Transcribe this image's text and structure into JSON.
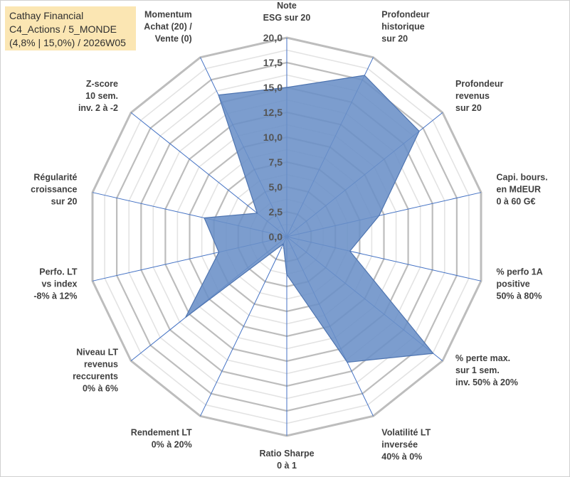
{
  "chart_data": {
    "type": "radar",
    "title": [
      "Cathay Financial",
      "C4_Actions / 5_MONDE",
      "(4,8% | 15,0%) / 2026W05"
    ],
    "rlim": [
      0,
      20
    ],
    "ticks": [
      "0,0",
      "2,5",
      "5,0",
      "7,5",
      "10,0",
      "12,5",
      "15,0",
      "17,5",
      "20,0"
    ],
    "tick_values": [
      0,
      2.5,
      5,
      7.5,
      10,
      12.5,
      15,
      17.5,
      20
    ],
    "grid_step_minor": 1.25,
    "categories": [
      [
        "Note",
        "ESG sur 20"
      ],
      [
        "Profondeur",
        "historique",
        "sur 20"
      ],
      [
        "Profondeur",
        "revenus",
        "sur 20"
      ],
      [
        "Capi. bours.",
        "en MdEUR",
        "0 à 60 G€"
      ],
      [
        "% perfo 1A",
        "positive",
        "50% à 80%"
      ],
      [
        "% perte max.",
        "sur 1 sem.",
        "inv. 50% à 20%"
      ],
      [
        "Volatilité LT",
        "inversée",
        "40% à 0%"
      ],
      [
        "Ratio Sharpe",
        "0 à 1"
      ],
      [
        "Rendement LT",
        "0% à 20%"
      ],
      [
        "Niveau LT",
        "revenus",
        "reccurents",
        "0% à 6%"
      ],
      [
        "Perfo. LT",
        "vs index",
        "-8% à 12%"
      ],
      [
        "Régularité",
        "croissance",
        "sur 20"
      ],
      [
        "Z-score",
        "10 sem.",
        "inv. 2 à -2"
      ],
      [
        "Momentum",
        "Achat (20) /",
        "Vente (0)"
      ]
    ],
    "series": [
      {
        "name": "Cathay Financial",
        "values": [
          15.0,
          18.0,
          17.0,
          9.5,
          6.5,
          18.8,
          14.0,
          3.8,
          0.8,
          13.0,
          7.0,
          8.5,
          3.8,
          15.8
        ]
      }
    ],
    "colors": {
      "fill": "#6a8fc7",
      "stroke": "#4e74b0",
      "grid": "#bfbfbf",
      "spoke": "#4472c4",
      "title_bg": "#fbe6b3"
    }
  }
}
